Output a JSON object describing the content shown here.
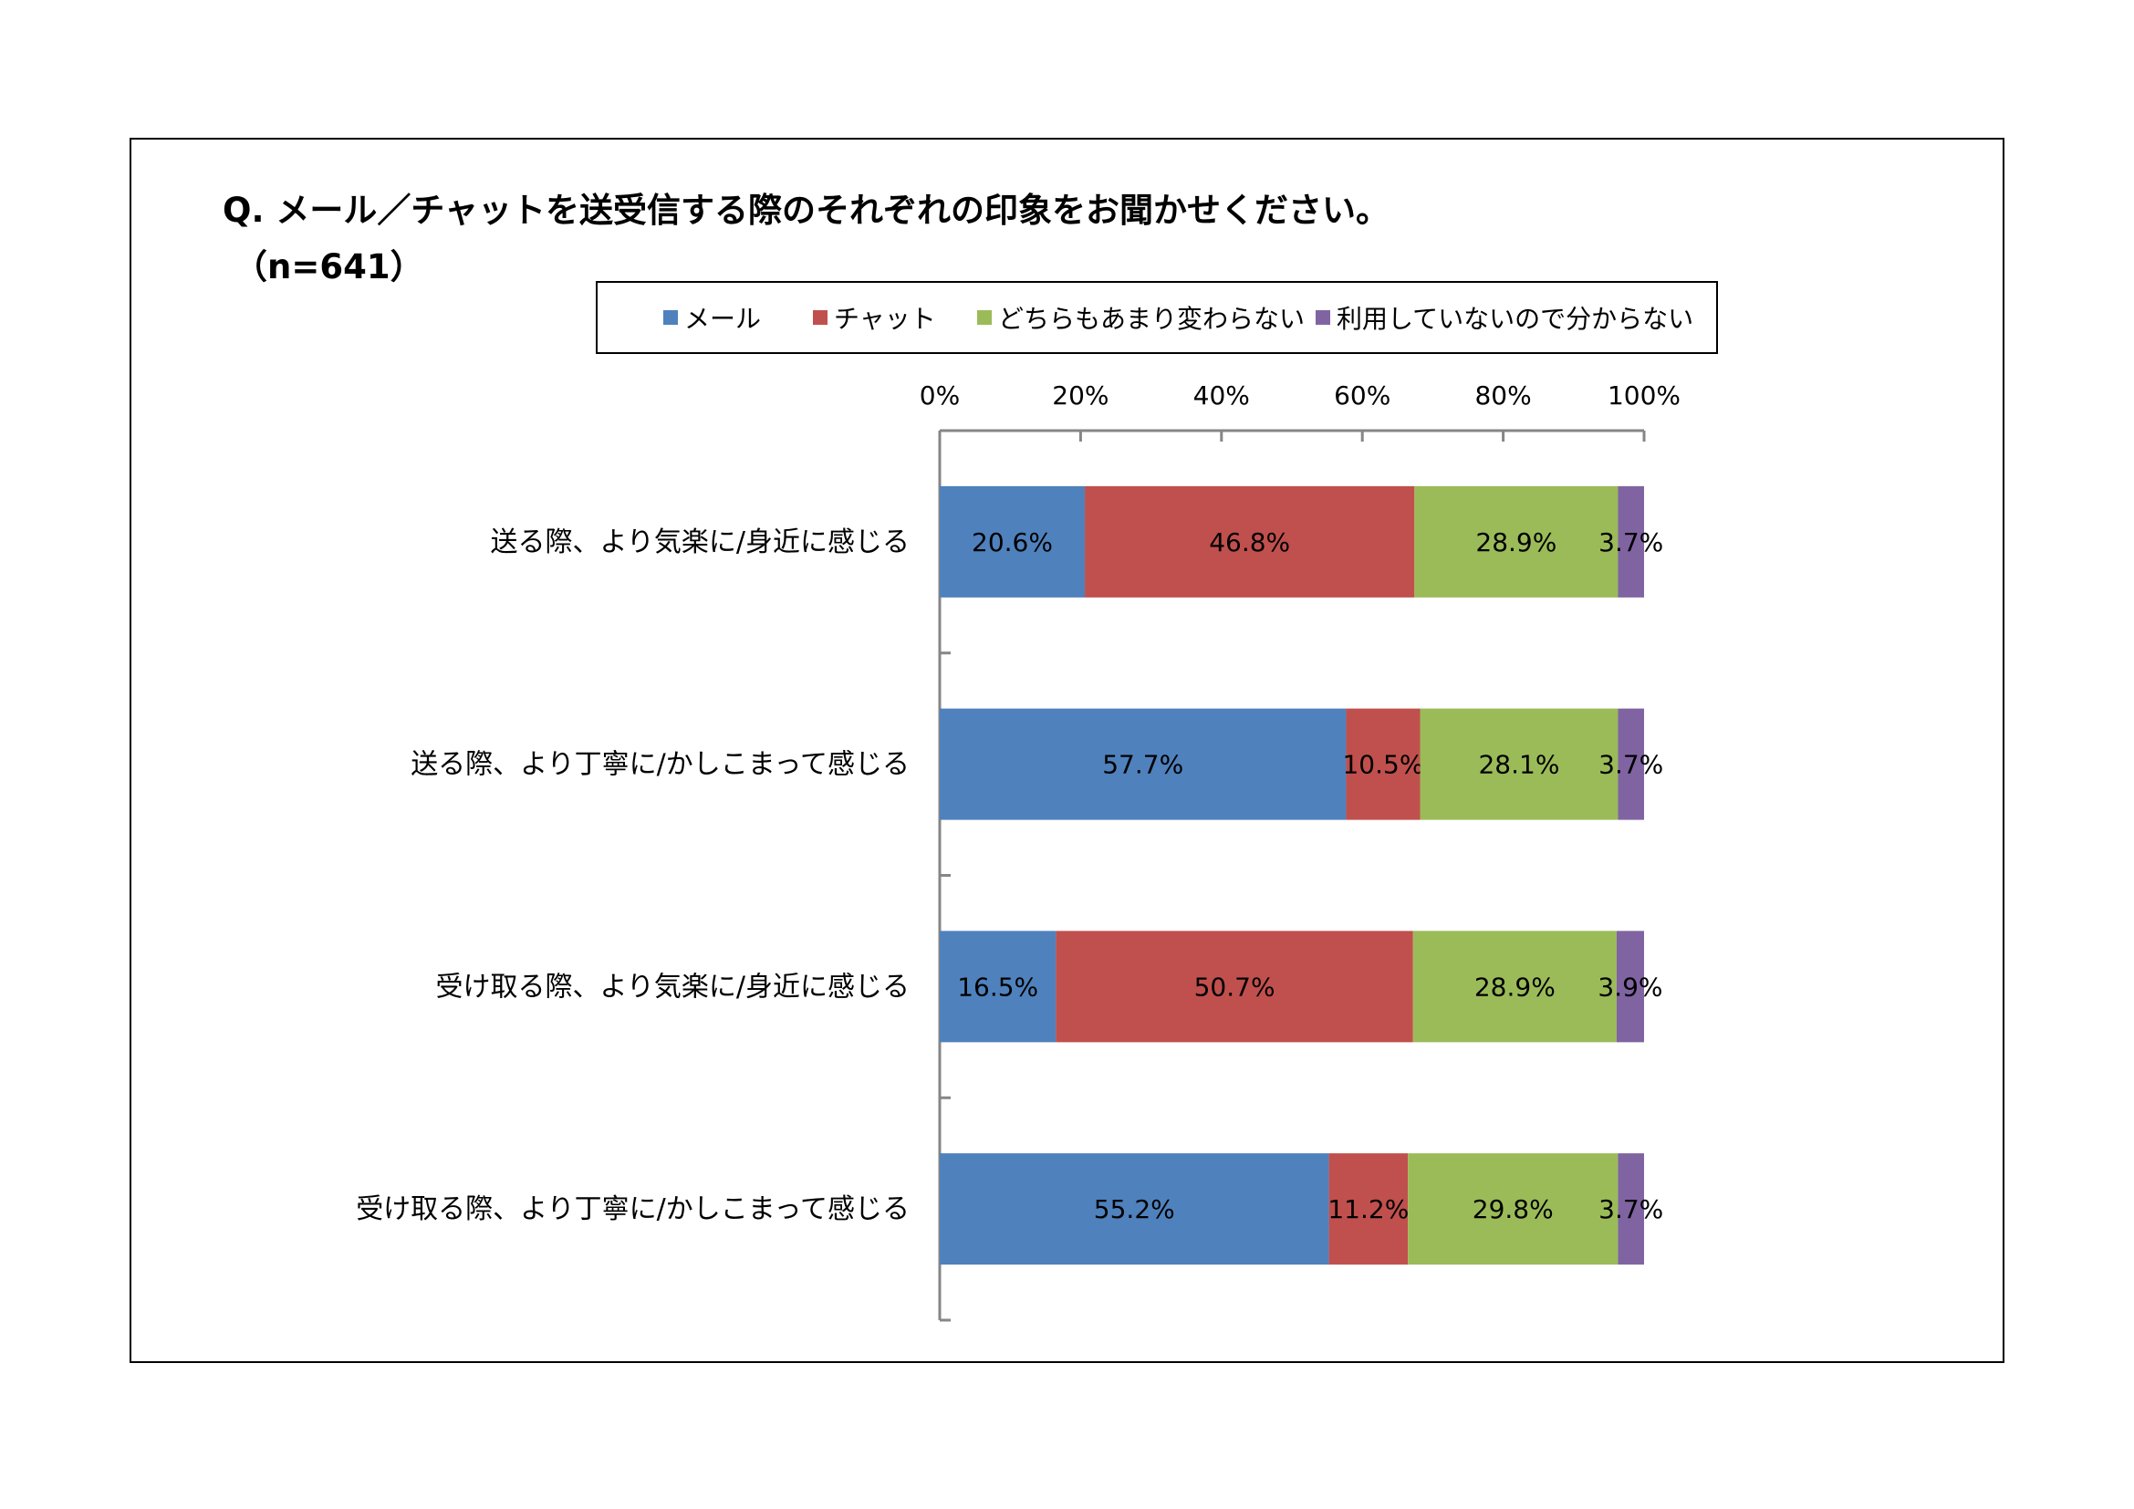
{
  "title": "Q. メール／チャットを送受信する際のそれぞれの印象をお聞かせください。",
  "subtitle": "（n=641）",
  "colors": {
    "mail": "#4f81bd",
    "chat": "#c0504d",
    "same": "#9bbb59",
    "unused": "#8064a2",
    "axis": "#868686"
  },
  "legend": [
    {
      "label": "メール",
      "color": "#4f81bd"
    },
    {
      "label": "チャット",
      "color": "#c0504d"
    },
    {
      "label": "どちらもあまり変わらない",
      "color": "#9bbb59"
    },
    {
      "label": "利用していないので分からない",
      "color": "#8064a2"
    }
  ],
  "chart_data": {
    "type": "bar",
    "orientation": "horizontal",
    "stacked": "percent",
    "title": "Q. メール／チャットを送受信する際のそれぞれの印象をお聞かせください。",
    "subtitle": "（n=641）",
    "categories": [
      "送る際、より気楽に/身近に感じる",
      "送る際、より丁寧に/かしこまって感じる",
      "受け取る際、より気楽に/身近に感じる",
      "受け取る際、より丁寧に/かしこまって感じる"
    ],
    "series": [
      {
        "name": "メール",
        "color": "#4f81bd",
        "values": [
          20.6,
          57.7,
          16.5,
          55.2
        ]
      },
      {
        "name": "チャット",
        "color": "#c0504d",
        "values": [
          46.8,
          10.5,
          50.7,
          11.2
        ]
      },
      {
        "name": "どちらもあまり変わらない",
        "color": "#9bbb59",
        "values": [
          28.9,
          28.1,
          28.9,
          29.8
        ]
      },
      {
        "name": "利用していないので分からない",
        "color": "#8064a2",
        "values": [
          3.7,
          3.7,
          3.9,
          3.7
        ]
      }
    ],
    "value_labels": [
      [
        "20.6%",
        "46.8%",
        "28.9%",
        "3.7%"
      ],
      [
        "57.7%",
        "10.5%",
        "28.1%",
        "3.7%"
      ],
      [
        "16.5%",
        "50.7%",
        "28.9%",
        "3.9%"
      ],
      [
        "55.2%",
        "11.2%",
        "29.8%",
        "3.7%"
      ]
    ],
    "xlim": [
      0,
      100
    ],
    "xticks": [
      0,
      20,
      40,
      60,
      80,
      100
    ],
    "xtick_labels": [
      "0%",
      "20%",
      "40%",
      "60%",
      "80%",
      "100%"
    ],
    "xaxis_position": "top",
    "legend_position": "top",
    "grid": false
  }
}
